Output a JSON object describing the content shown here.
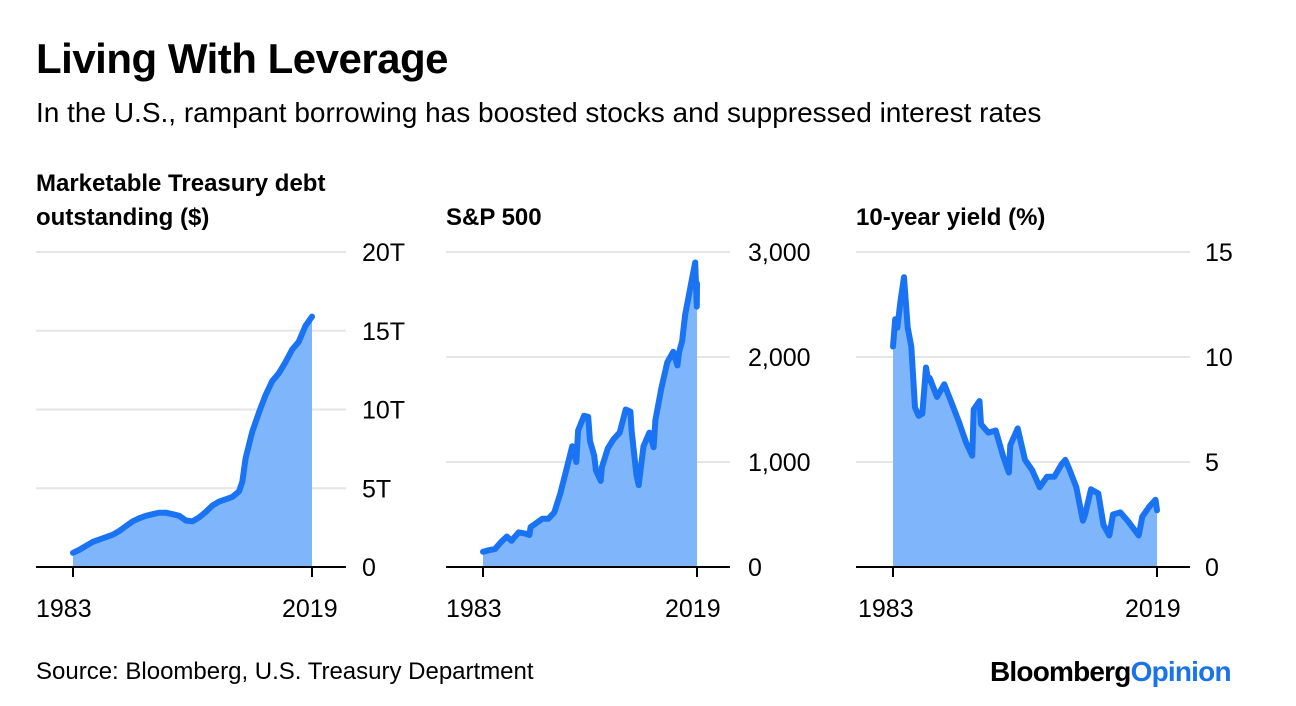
{
  "title": "Living With Leverage",
  "subtitle": "In the U.S., rampant borrowing has boosted stocks and suppressed interest rates",
  "source": "Source: Bloomberg, U.S. Treasury Department",
  "logo": {
    "part1": "Bloomberg",
    "part2": "Opinion"
  },
  "colors": {
    "line": "#1a73f2",
    "fill": "#7fb6fb",
    "grid": "#e6e6e6",
    "axis": "#000000"
  },
  "chart_data": [
    {
      "type": "area",
      "title_line1": "Marketable Treasury debt",
      "title_line2": "outstanding ($)",
      "x_range": [
        1983,
        2019
      ],
      "x_ticks": [
        "1983",
        "2019"
      ],
      "ylim": [
        0,
        20000000000000
      ],
      "y_ticks": [
        0,
        5000000000000,
        10000000000000,
        15000000000000,
        20000000000000
      ],
      "y_tick_labels": [
        "0",
        "5T",
        "10T",
        "15T",
        "20T"
      ],
      "x": [
        1983,
        1984,
        1985,
        1986,
        1987,
        1988,
        1989,
        1990,
        1991,
        1992,
        1993,
        1994,
        1995,
        1996,
        1997,
        1998,
        1999,
        2000,
        2001,
        2002,
        2003,
        2004,
        2005,
        2006,
        2007,
        2008,
        2008.5,
        2009,
        2010,
        2011,
        2012,
        2013,
        2014,
        2015,
        2016,
        2017,
        2018,
        2019
      ],
      "values": [
        900000000000.0,
        1100000000000.0,
        1350000000000.0,
        1600000000000.0,
        1750000000000.0,
        1900000000000.0,
        2050000000000.0,
        2300000000000.0,
        2600000000000.0,
        2900000000000.0,
        3100000000000.0,
        3250000000000.0,
        3350000000000.0,
        3450000000000.0,
        3450000000000.0,
        3350000000000.0,
        3250000000000.0,
        2950000000000.0,
        2900000000000.0,
        3150000000000.0,
        3500000000000.0,
        3900000000000.0,
        4150000000000.0,
        4300000000000.0,
        4450000000000.0,
        4800000000000.0,
        5400000000000.0,
        6900000000000.0,
        8600000000000.0,
        9800000000000.0,
        10900000000000.0,
        11800000000000.0,
        12300000000000.0,
        13000000000000.0,
        13800000000000.0,
        14300000000000.0,
        15300000000000.0,
        15900000000000.0
      ]
    },
    {
      "type": "area",
      "title_line1": "",
      "title_line2": "S&P 500",
      "x_range": [
        1983,
        2019
      ],
      "x_ticks": [
        "1983",
        "2019"
      ],
      "ylim": [
        0,
        3000
      ],
      "y_ticks": [
        0,
        1000,
        2000,
        3000
      ],
      "y_tick_labels": [
        "0",
        "1,000",
        "2,000",
        "3,000"
      ],
      "x": [
        1983,
        1984,
        1985,
        1986,
        1987,
        1987.8,
        1988,
        1989,
        1990,
        1990.8,
        1991,
        1992,
        1993,
        1994,
        1995,
        1996,
        1997,
        1998,
        1998.7,
        1999,
        2000,
        2000.7,
        2001,
        2001.7,
        2002,
        2002.8,
        2003,
        2004,
        2005,
        2006,
        2007,
        2007.8,
        2008,
        2008.8,
        2009.2,
        2010,
        2011,
        2011.7,
        2012,
        2013,
        2014,
        2015,
        2015.7,
        2016,
        2016.5,
        2017,
        2018,
        2018.7,
        2018.97,
        2019
      ],
      "values": [
        145,
        160,
        170,
        235,
        290,
        250,
        265,
        330,
        320,
        305,
        380,
        420,
        460,
        460,
        520,
        700,
        920,
        1150,
        1000,
        1300,
        1440,
        1430,
        1200,
        1060,
        920,
        820,
        950,
        1130,
        1220,
        1280,
        1500,
        1480,
        1300,
        880,
        780,
        1150,
        1280,
        1140,
        1400,
        1700,
        1950,
        2050,
        1920,
        2050,
        2150,
        2400,
        2700,
        2900,
        2480,
        2700
      ]
    },
    {
      "type": "area",
      "title_line1": "",
      "title_line2": "10-year yield (%)",
      "x_range": [
        1983,
        2019
      ],
      "x_ticks": [
        "1983",
        "2019"
      ],
      "ylim": [
        0,
        15
      ],
      "y_ticks": [
        0,
        5,
        10,
        15
      ],
      "y_tick_labels": [
        "0",
        "5",
        "10",
        "15"
      ],
      "x": [
        1983,
        1983.3,
        1983.6,
        1984,
        1984.5,
        1985,
        1985.5,
        1986,
        1986.5,
        1987,
        1987.5,
        1987.8,
        1988,
        1989,
        1990,
        1991,
        1992,
        1993,
        1993.8,
        1994,
        1994.8,
        1995,
        1996,
        1997,
        1998,
        1998.8,
        1999,
        2000,
        2001,
        2002,
        2003,
        2004,
        2005,
        2006,
        2006.5,
        2007,
        2008,
        2008.9,
        2009.2,
        2010,
        2011,
        2011.7,
        2012.5,
        2013,
        2014,
        2015,
        2016.5,
        2017,
        2018,
        2018.8,
        2019
      ],
      "values": [
        10.5,
        11.8,
        11.4,
        12.6,
        13.8,
        11.4,
        10.5,
        7.6,
        7.2,
        7.3,
        9.5,
        8.9,
        9.0,
        8.1,
        8.7,
        7.8,
        6.9,
        5.9,
        5.3,
        7.5,
        7.9,
        6.8,
        6.4,
        6.5,
        5.3,
        4.5,
        5.8,
        6.6,
        5.1,
        4.6,
        3.8,
        4.3,
        4.3,
        4.9,
        5.1,
        4.7,
        3.8,
        2.2,
        2.5,
        3.7,
        3.5,
        2.0,
        1.5,
        2.5,
        2.6,
        2.2,
        1.5,
        2.4,
        2.9,
        3.2,
        2.7
      ]
    }
  ]
}
